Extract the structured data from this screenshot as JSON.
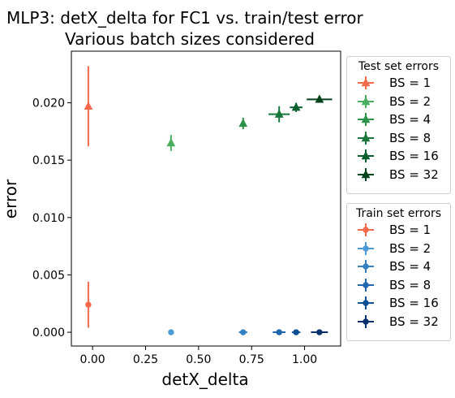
{
  "chart_data": {
    "type": "scatter",
    "title_lines": [
      "MLP3: detX_delta for FC1 vs. train/test error",
      "Various batch sizes considered"
    ],
    "xlabel": "detX_delta",
    "ylabel": "error",
    "xlim": [
      -0.1,
      1.17
    ],
    "ylim": [
      -0.0012,
      0.0245
    ],
    "xticks": [
      "0.00",
      "0.25",
      "0.50",
      "0.75",
      "1.00"
    ],
    "xtick_values": [
      0,
      0.25,
      0.5,
      0.75,
      1.0
    ],
    "yticks": [
      "0.000",
      "0.005",
      "0.010",
      "0.015",
      "0.020"
    ],
    "ytick_values": [
      0,
      0.005,
      0.01,
      0.015,
      0.02
    ],
    "grid": false,
    "legends": [
      {
        "title": "Test set errors",
        "placement": "outside-right-top",
        "marker": "triangle",
        "series": [
          {
            "name": "BS = 1",
            "color": "#f4694a",
            "x": -0.02,
            "y": 0.0197,
            "xerr": 0.0,
            "yerr": 0.0035
          },
          {
            "name": "BS = 2",
            "color": "#4aae5f",
            "x": 0.37,
            "y": 0.0165,
            "xerr": 0.0,
            "yerr": 0.0007
          },
          {
            "name": "BS = 4",
            "color": "#2b924a",
            "x": 0.71,
            "y": 0.0182,
            "xerr": 0.01,
            "yerr": 0.0005
          },
          {
            "name": "BS = 8",
            "color": "#17773a",
            "x": 0.88,
            "y": 0.019,
            "xerr": 0.05,
            "yerr": 0.0007
          },
          {
            "name": "BS = 16",
            "color": "#075f2e",
            "x": 0.96,
            "y": 0.0196,
            "xerr": 0.03,
            "yerr": 0.0004
          },
          {
            "name": "BS = 32",
            "color": "#00441b",
            "x": 1.07,
            "y": 0.0203,
            "xerr": 0.06,
            "yerr": 0.0003
          }
        ]
      },
      {
        "title": "Train set errors",
        "placement": "outside-right-bottom",
        "marker": "circle",
        "series": [
          {
            "name": "BS = 1",
            "color": "#f4694a",
            "x": -0.02,
            "y": 0.0024,
            "xerr": 0.0,
            "yerr": 0.002
          },
          {
            "name": "BS = 2",
            "color": "#4d9bd6",
            "x": 0.37,
            "y": 0.0,
            "xerr": 0.0,
            "yerr": 0.0
          },
          {
            "name": "BS = 4",
            "color": "#3381c1",
            "x": 0.71,
            "y": 0.0,
            "xerr": 0.02,
            "yerr": 0.0
          },
          {
            "name": "BS = 8",
            "color": "#1e66ad",
            "x": 0.88,
            "y": 0.0,
            "xerr": 0.03,
            "yerr": 0.0
          },
          {
            "name": "BS = 16",
            "color": "#0d4f96",
            "x": 0.96,
            "y": 0.0,
            "xerr": 0.02,
            "yerr": 0.0
          },
          {
            "name": "BS = 32",
            "color": "#08306b",
            "x": 1.07,
            "y": 0.0,
            "xerr": 0.04,
            "yerr": 0.0
          }
        ]
      }
    ]
  }
}
